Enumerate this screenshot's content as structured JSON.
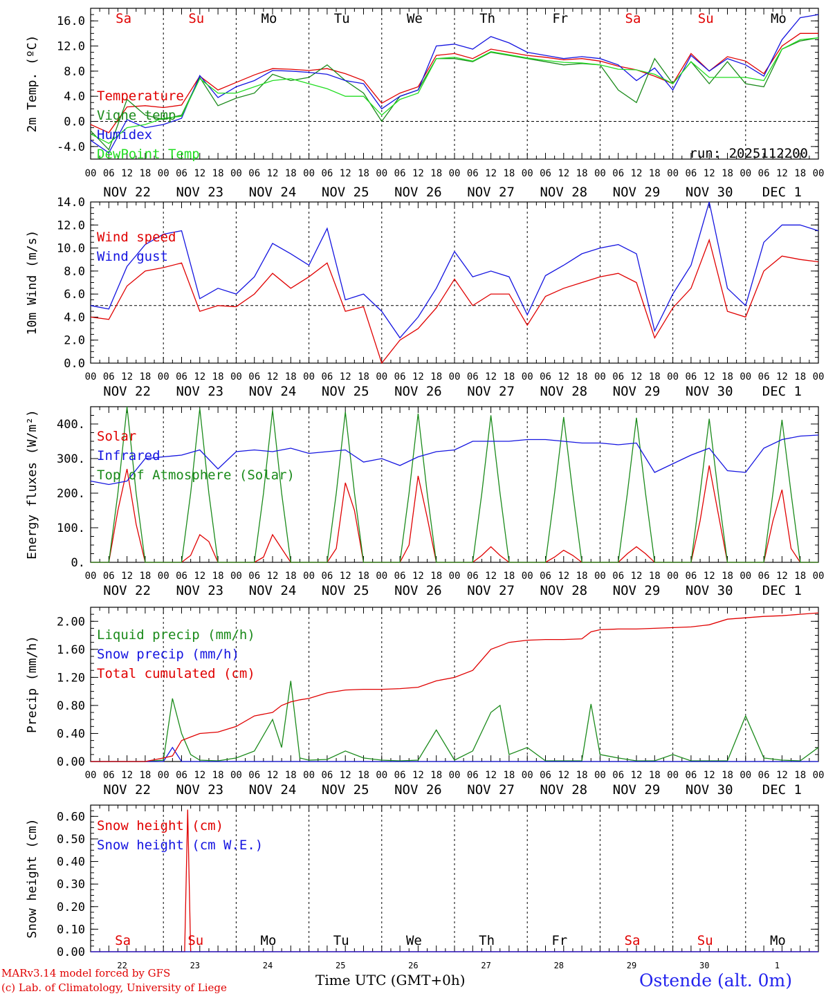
{
  "run_label": "run: 2025112200",
  "footer": {
    "model": "MARv3.14 model forced by GFS",
    "lab": "(c) Lab. of Climatology, University of Liege",
    "xtitle": "Time UTC (GMT+0h)",
    "station": "Ostende (alt. 0m)"
  },
  "colors": {
    "red": "#e00000",
    "green": "#1a8a1a",
    "blue": "#1414e0",
    "lightgreen": "#22dd22",
    "sunday": "#e00000",
    "weekday": "#000000"
  },
  "hour_labels": [
    "00",
    "06",
    "12",
    "18"
  ],
  "date_labels": [
    "NOV 22",
    "NOV 23",
    "NOV 24",
    "NOV 25",
    "NOV 26",
    "NOV 27",
    "NOV 28",
    "NOV 29",
    "NOV 30",
    "DEC  1"
  ],
  "day_names": [
    "Sa",
    "Su",
    "Mo",
    "Tu",
    "We",
    "Th",
    "Fr",
    "Sa",
    "Su",
    "Mo"
  ],
  "day_weekend": [
    true,
    true,
    false,
    false,
    false,
    false,
    false,
    true,
    true,
    false
  ],
  "day_numbers": [
    "22",
    "23",
    "24",
    "25",
    "26",
    "27",
    "28",
    "29",
    "30",
    "1"
  ],
  "chart_data": [
    {
      "type": "line",
      "title": "",
      "ylabel": "2m Temp. (ºC)",
      "ylim": [
        -6,
        18
      ],
      "yticks": [
        -4.0,
        0.0,
        4.0,
        8.0,
        12.0,
        16.0
      ],
      "ytick_labels": [
        "-4.0",
        "0.0",
        "4.0",
        "8.0",
        "12.0",
        "16.0"
      ],
      "ref_line": 0,
      "x_unit": "hours since 2025-11-22 00 UTC",
      "x": [
        0,
        6,
        12,
        18,
        24,
        30,
        36,
        42,
        48,
        54,
        60,
        66,
        72,
        78,
        84,
        90,
        96,
        102,
        108,
        114,
        120,
        126,
        132,
        138,
        144,
        150,
        156,
        162,
        168,
        174,
        180,
        186,
        192,
        198,
        204,
        210,
        216,
        222,
        228,
        234,
        240
      ],
      "series": [
        {
          "name": "Temperature",
          "color": "red",
          "values": [
            -0.5,
            -1.8,
            2.3,
            2.5,
            2.2,
            2.6,
            7.2,
            5.0,
            6.2,
            7.4,
            8.4,
            8.3,
            8.1,
            8.4,
            7.6,
            6.5,
            2.9,
            4.5,
            5.5,
            10.5,
            10.8,
            10.0,
            11.5,
            11.0,
            10.5,
            10.2,
            9.8,
            10.0,
            9.6,
            8.8,
            8.2,
            7.2,
            6.0,
            10.8,
            8.0,
            10.3,
            9.6,
            7.6,
            12.0,
            14.0,
            14.0
          ]
        },
        {
          "name": "Vigne temp",
          "color": "green",
          "values": [
            -1.5,
            -4.5,
            3.5,
            1.0,
            0.3,
            1.0,
            7.0,
            2.5,
            3.7,
            4.5,
            7.5,
            6.5,
            7.0,
            9.0,
            6.5,
            4.5,
            0.0,
            4.0,
            5.0,
            10.0,
            10.0,
            9.5,
            11.0,
            10.5,
            10.0,
            9.5,
            9.0,
            9.2,
            9.0,
            5.0,
            3.0,
            10.0,
            6.0,
            9.5,
            6.0,
            9.5,
            6.0,
            5.5,
            11.5,
            12.8,
            13.3
          ]
        },
        {
          "name": "Humidex",
          "color": "blue",
          "values": [
            -3.0,
            -5.0,
            0.3,
            -1.0,
            -0.5,
            0.5,
            7.3,
            3.8,
            5.5,
            6.5,
            8.1,
            8.0,
            7.8,
            7.5,
            6.5,
            6.0,
            2.0,
            4.0,
            5.0,
            12.0,
            12.3,
            11.5,
            13.5,
            12.5,
            11.0,
            10.5,
            10.0,
            10.3,
            10.0,
            9.0,
            6.5,
            8.5,
            5.0,
            10.5,
            8.0,
            10.0,
            9.0,
            7.2,
            13.0,
            16.5,
            17.0
          ]
        },
        {
          "name": "DewPoint Temp",
          "color": "lightgreen",
          "values": [
            -2.0,
            -3.5,
            -1.0,
            -0.5,
            0.5,
            0.8,
            6.8,
            4.5,
            4.5,
            5.5,
            6.5,
            6.8,
            6.0,
            5.2,
            4.0,
            4.0,
            1.0,
            3.5,
            4.5,
            10.0,
            10.2,
            9.6,
            11.1,
            10.6,
            10.1,
            9.7,
            9.4,
            9.3,
            9.0,
            8.3,
            8.2,
            7.5,
            6.0,
            9.5,
            7.0,
            7.0,
            7.0,
            6.5,
            11.5,
            13.0,
            13.3
          ]
        }
      ]
    },
    {
      "type": "line",
      "title": "",
      "ylabel": "10m Wind (m/s)",
      "ylim": [
        0,
        14
      ],
      "yticks": [
        0.0,
        2.0,
        4.0,
        6.0,
        8.0,
        10.0,
        12.0,
        14.0
      ],
      "ytick_labels": [
        "0.0",
        "2.0",
        "4.0",
        "6.0",
        "8.0",
        "10.0",
        "12.0",
        "14.0"
      ],
      "ref_line": 5,
      "x_unit": "hours since 2025-11-22 00 UTC",
      "x": [
        0,
        6,
        12,
        18,
        24,
        30,
        36,
        42,
        48,
        54,
        60,
        66,
        72,
        78,
        84,
        90,
        96,
        102,
        108,
        114,
        120,
        126,
        132,
        138,
        144,
        150,
        156,
        162,
        168,
        174,
        180,
        186,
        192,
        198,
        204,
        210,
        216,
        222,
        228,
        234,
        240
      ],
      "series": [
        {
          "name": "Wind speed",
          "color": "red",
          "values": [
            4.0,
            3.8,
            6.7,
            8.0,
            8.3,
            8.7,
            4.5,
            5.0,
            4.9,
            6.0,
            7.8,
            6.5,
            7.5,
            8.7,
            4.5,
            4.9,
            0.0,
            2.0,
            3.0,
            4.8,
            7.3,
            5.0,
            6.0,
            6.0,
            3.3,
            5.8,
            6.5,
            7.0,
            7.5,
            7.8,
            7.0,
            2.2,
            4.8,
            6.5,
            10.7,
            4.5,
            4.0,
            8.0,
            9.3,
            9.0,
            8.8
          ]
        },
        {
          "name": "Wind gust",
          "color": "blue",
          "values": [
            5.0,
            4.7,
            8.4,
            10.3,
            11.2,
            11.5,
            5.6,
            6.5,
            6.0,
            7.5,
            10.4,
            9.5,
            8.5,
            11.7,
            5.5,
            6.0,
            4.5,
            2.2,
            4.0,
            6.5,
            9.7,
            7.5,
            8.0,
            7.5,
            4.2,
            7.6,
            8.5,
            9.5,
            10.0,
            10.3,
            9.5,
            2.8,
            6.0,
            8.5,
            14.0,
            6.5,
            5.0,
            10.5,
            12.0,
            12.0,
            11.5
          ]
        }
      ]
    },
    {
      "type": "line",
      "title": "",
      "ylabel": "Energy fluxes (W/m²)",
      "ylim": [
        0,
        450
      ],
      "yticks": [
        0,
        100,
        200,
        300,
        400
      ],
      "ytick_labels": [
        "0.",
        "100.",
        "200.",
        "300.",
        "400."
      ],
      "x_unit": "hours since 2025-11-22 00 UTC",
      "x_solar": [
        0,
        6,
        9,
        12,
        15,
        18,
        24,
        30,
        33,
        36,
        39,
        42,
        48,
        54,
        57,
        60,
        63,
        66,
        72,
        78,
        81,
        84,
        87,
        90,
        96,
        102,
        105,
        108,
        111,
        114,
        120,
        126,
        129,
        132,
        135,
        138,
        144,
        150,
        153,
        156,
        159,
        162,
        168,
        174,
        177,
        180,
        183,
        186,
        192,
        198,
        201,
        204,
        207,
        210,
        216,
        222,
        225,
        228,
        231,
        234,
        240
      ],
      "series": [
        {
          "name": "Solar",
          "color": "red",
          "values": [
            0,
            0,
            150,
            270,
            110,
            0,
            0,
            0,
            20,
            80,
            60,
            0,
            0,
            0,
            15,
            80,
            40,
            0,
            0,
            0,
            40,
            230,
            150,
            0,
            0,
            0,
            50,
            250,
            130,
            0,
            0,
            0,
            20,
            45,
            20,
            0,
            0,
            0,
            15,
            35,
            20,
            0,
            0,
            0,
            25,
            45,
            25,
            0,
            0,
            0,
            120,
            280,
            140,
            0,
            0,
            0,
            120,
            210,
            40,
            0,
            0
          ]
        },
        {
          "name": "Top of Atmosphere (Solar)",
          "color": "green",
          "values": [
            0,
            0,
            200,
            450,
            200,
            0,
            0,
            0,
            200,
            445,
            200,
            0,
            0,
            0,
            200,
            440,
            200,
            0,
            0,
            0,
            200,
            435,
            200,
            0,
            0,
            0,
            200,
            430,
            200,
            0,
            0,
            0,
            200,
            425,
            200,
            0,
            0,
            0,
            200,
            420,
            200,
            0,
            0,
            0,
            200,
            418,
            200,
            0,
            0,
            0,
            200,
            415,
            200,
            0,
            0,
            0,
            200,
            412,
            200,
            0,
            0
          ]
        },
        {
          "name": "Infrared",
          "color": "blue",
          "x": [
            0,
            6,
            12,
            18,
            24,
            30,
            36,
            42,
            48,
            54,
            60,
            66,
            72,
            78,
            84,
            90,
            96,
            102,
            108,
            114,
            120,
            126,
            132,
            138,
            144,
            150,
            156,
            162,
            168,
            174,
            180,
            186,
            192,
            198,
            204,
            210,
            216,
            222,
            228,
            234,
            240
          ],
          "values": [
            235,
            225,
            235,
            300,
            305,
            310,
            325,
            270,
            320,
            325,
            320,
            330,
            315,
            320,
            325,
            290,
            300,
            280,
            305,
            320,
            325,
            350,
            350,
            350,
            355,
            355,
            350,
            345,
            345,
            340,
            345,
            260,
            285,
            310,
            330,
            265,
            260,
            330,
            355,
            365,
            368
          ]
        }
      ]
    },
    {
      "type": "line",
      "title": "",
      "ylabel": "Precip (mm/h)",
      "ylim": [
        0,
        2.2
      ],
      "yticks": [
        0.0,
        0.4,
        0.8,
        1.2,
        1.6,
        2.0
      ],
      "ytick_labels": [
        "0.00",
        "0.40",
        "0.80",
        "1.20",
        "1.60",
        "2.00"
      ],
      "x_unit": "hours since 2025-11-22 00 UTC",
      "x": [
        0,
        6,
        12,
        18,
        24,
        27,
        30,
        33,
        36,
        42,
        48,
        54,
        60,
        63,
        66,
        69,
        72,
        78,
        84,
        90,
        96,
        102,
        108,
        114,
        120,
        126,
        132,
        135,
        138,
        144,
        150,
        156,
        162,
        165,
        168,
        174,
        180,
        186,
        192,
        198,
        204,
        210,
        216,
        222,
        228,
        234,
        240
      ],
      "series": [
        {
          "name": "Liquid precip (mm/h)",
          "color": "green",
          "values": [
            0,
            0,
            0,
            0,
            0.02,
            0.9,
            0.4,
            0.1,
            0.02,
            0.01,
            0.05,
            0.15,
            0.6,
            0.2,
            1.15,
            0.05,
            0.02,
            0.03,
            0.15,
            0.05,
            0.02,
            0.01,
            0.02,
            0.45,
            0.02,
            0.15,
            0.7,
            0.8,
            0.1,
            0.2,
            0.01,
            0.01,
            0.01,
            0.82,
            0.1,
            0.05,
            0.01,
            0.01,
            0.1,
            0.01,
            0.01,
            0.01,
            0.65,
            0.05,
            0.02,
            0.01,
            0.2
          ]
        },
        {
          "name": "Snow precip (mm/h)",
          "color": "blue",
          "values": [
            0,
            0,
            0,
            0,
            0,
            0.2,
            0,
            0,
            0,
            0,
            0,
            0,
            0,
            0,
            0,
            0,
            0,
            0,
            0,
            0,
            0,
            0,
            0,
            0,
            0,
            0,
            0,
            0,
            0,
            0,
            0,
            0,
            0,
            0,
            0,
            0,
            0,
            0,
            0,
            0,
            0,
            0,
            0,
            0,
            0,
            0,
            0
          ]
        },
        {
          "name": "Total cumulated (cm)",
          "color": "red",
          "values": [
            0,
            0,
            0,
            0,
            0.05,
            0.08,
            0.3,
            0.35,
            0.4,
            0.42,
            0.5,
            0.65,
            0.7,
            0.8,
            0.85,
            0.88,
            0.9,
            0.98,
            1.02,
            1.03,
            1.03,
            1.04,
            1.06,
            1.15,
            1.2,
            1.3,
            1.6,
            1.65,
            1.7,
            1.73,
            1.74,
            1.74,
            1.75,
            1.85,
            1.88,
            1.89,
            1.89,
            1.9,
            1.91,
            1.92,
            1.95,
            2.03,
            2.05,
            2.07,
            2.08,
            2.1,
            2.12
          ]
        }
      ]
    },
    {
      "type": "line",
      "title": "",
      "ylabel": "Snow height (cm)",
      "ylim": [
        0,
        0.65
      ],
      "yticks": [
        0.0,
        0.1,
        0.2,
        0.3,
        0.4,
        0.5,
        0.6
      ],
      "ytick_labels": [
        "0.00",
        "0.10",
        "0.20",
        "0.30",
        "0.40",
        "0.50",
        "0.60"
      ],
      "x_unit": "hours since 2025-11-22 00 UTC",
      "x": [
        0,
        30,
        31,
        32,
        33,
        34,
        240
      ],
      "series": [
        {
          "name": "Snow height (cm)",
          "color": "red",
          "values": [
            0,
            0,
            0,
            0.63,
            0,
            0,
            0
          ]
        },
        {
          "name": "Snow height (cm W.E.)",
          "color": "blue",
          "values": [
            0,
            0,
            0,
            0,
            0,
            0,
            0
          ]
        }
      ]
    }
  ]
}
